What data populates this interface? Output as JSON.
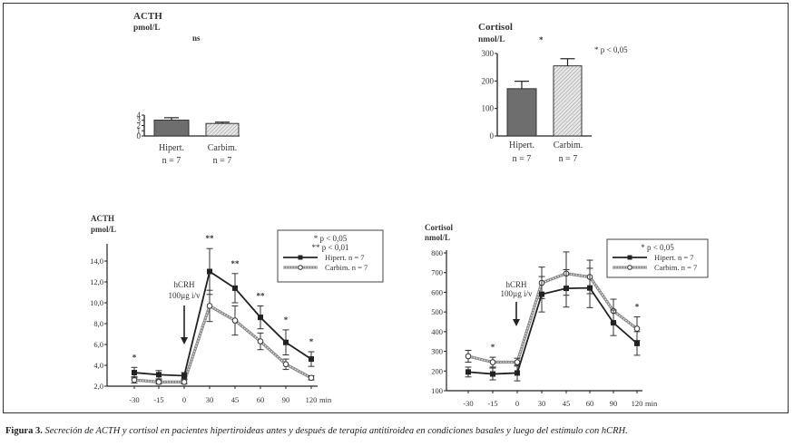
{
  "chart_data": [
    {
      "id": "acth-bar",
      "type": "bar",
      "title": "ACTH",
      "ylabel": "pmol/L",
      "ylim": [
        0,
        4
      ],
      "yticks": [
        "0",
        "1",
        "2",
        "3",
        "4"
      ],
      "ytick_values": [
        0,
        1,
        2,
        3,
        4
      ],
      "categories": [
        "Hipert.",
        "Carbim."
      ],
      "category_n": [
        "n = 7",
        "n = 7"
      ],
      "values": [
        3.05,
        2.4
      ],
      "errors": [
        0.45,
        0.25
      ],
      "significance": "ns",
      "colors": [
        "#6e6e6e",
        "#cfcfcf"
      ]
    },
    {
      "id": "cortisol-bar",
      "type": "bar",
      "title": "Cortisol",
      "ylabel": "nmol/L",
      "ylim": [
        0,
        300
      ],
      "yticks": [
        "0",
        "100",
        "200",
        "300"
      ],
      "ytick_values": [
        0,
        100,
        200,
        300
      ],
      "categories": [
        "Hipert.",
        "Carbim."
      ],
      "category_n": [
        "n = 7",
        "n = 7"
      ],
      "values": [
        172,
        255
      ],
      "errors": [
        27,
        26
      ],
      "significance": "*",
      "annotation": "* p < 0,05",
      "colors": [
        "#6e6e6e",
        "#cfcfcf"
      ]
    },
    {
      "id": "acth-line",
      "type": "line",
      "title": "ACTH",
      "ylabel": "pmol/L",
      "xlabel": "min",
      "ylim": [
        2.0,
        14.0
      ],
      "yticks": [
        "2,0",
        "4,0",
        "6,0",
        "8,0",
        "10,0",
        "12,0",
        "14,0"
      ],
      "ytick_values": [
        2,
        4,
        6,
        8,
        10,
        12,
        14
      ],
      "x": [
        "-30",
        "-15",
        "0",
        "30",
        "45",
        "60",
        "90",
        "120"
      ],
      "series": [
        {
          "name": "Hipert.  n = 7",
          "marker": "filled-square",
          "values": [
            3.3,
            3.1,
            3.0,
            13.0,
            11.4,
            8.6,
            6.2,
            4.6
          ],
          "errors": [
            0.5,
            0.4,
            0.3,
            2.2,
            1.4,
            1.1,
            1.2,
            0.7
          ]
        },
        {
          "name": "Carbim.  n = 7",
          "marker": "open-circle",
          "values": [
            2.6,
            2.4,
            2.4,
            9.7,
            8.3,
            6.3,
            4.1,
            2.8
          ],
          "errors": [
            0.3,
            0.2,
            0.2,
            1.5,
            1.4,
            0.8,
            0.5,
            0.2
          ]
        }
      ],
      "significance": [
        "*",
        "",
        "",
        "**",
        "**",
        "**",
        "*",
        "*"
      ],
      "annotation_arrow": {
        "label_line1": "hCRH",
        "label_line2": "100µg i/v",
        "x": "0"
      },
      "legend": {
        "lines": [
          "* p < 0,05",
          "** p < 0,01"
        ],
        "entries": [
          "Hipert.  n = 7",
          "Carbim.  n = 7"
        ],
        "placement": "top-right"
      }
    },
    {
      "id": "cortisol-line",
      "type": "line",
      "title": "Cortisol",
      "ylabel": "nmol/L",
      "xlabel": "min",
      "ylim": [
        100,
        800
      ],
      "yticks": [
        "100",
        "200",
        "300",
        "400",
        "500",
        "600",
        "700",
        "800"
      ],
      "ytick_values": [
        100,
        200,
        300,
        400,
        500,
        600,
        700,
        800
      ],
      "x": [
        "-30",
        "-15",
        "0",
        "30",
        "45",
        "60",
        "90",
        "120"
      ],
      "series": [
        {
          "name": "Hipert.  n = 7",
          "marker": "filled-square",
          "values": [
            195,
            185,
            190,
            590,
            620,
            622,
            445,
            340
          ],
          "errors": [
            25,
            30,
            40,
            90,
            95,
            100,
            65,
            60
          ]
        },
        {
          "name": "Carbim.  n = 7",
          "marker": "open-circle",
          "values": [
            275,
            245,
            245,
            648,
            695,
            678,
            505,
            415
          ],
          "errors": [
            30,
            25,
            20,
            80,
            110,
            85,
            60,
            60
          ]
        }
      ],
      "significance": [
        "",
        "*",
        "",
        "",
        "",
        "",
        "",
        "*"
      ],
      "annotation_arrow": {
        "label_line1": "hCRH",
        "label_line2": "100µg i/v",
        "x": "0"
      },
      "legend": {
        "lines": [
          "* p < 0,05"
        ],
        "entries": [
          "Hipert.  n = 7",
          "Carbim.  n = 7"
        ],
        "placement": "top-right"
      }
    }
  ],
  "caption": {
    "label": "Figura 3.",
    "text": " Secreción de ACTH y cortisol en pacientes hipertiroideas antes y después de terapia antitiroidea  en condiciones basales y luego del estímulo con hCRH."
  }
}
